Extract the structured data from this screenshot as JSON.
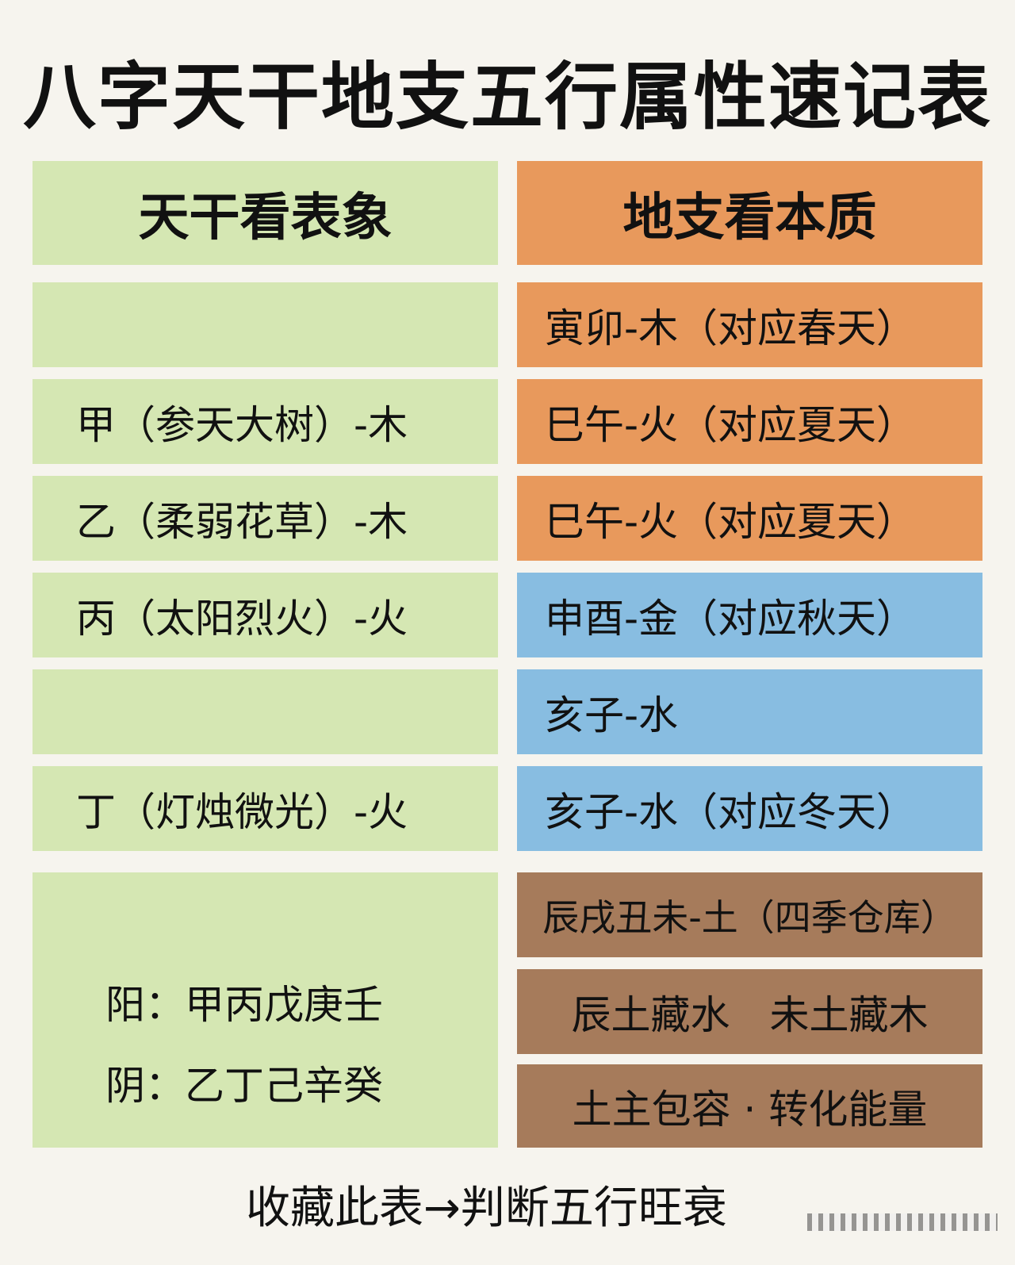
{
  "title": "八字天干地支五行属性速记表",
  "left": {
    "header": "天干看表象",
    "rows": [
      "",
      "甲（参天大树）-木",
      "乙（柔弱花草）-木",
      "丙（太阳烈火）-火",
      "",
      "丁（灯烛微光）-火"
    ],
    "yinyang": [
      "阳：甲丙戊庚壬",
      "阴：乙丁己辛癸"
    ]
  },
  "right": {
    "header": "地支看本质",
    "rows": [
      "寅卯-木（对应春天）",
      "巳午-火（对应夏天）",
      "巳午-火（对应夏天）",
      "申酉-金（对应秋天）",
      "亥子-水",
      "亥子-水（对应冬天）"
    ],
    "earth": [
      "辰戌丑未-土（四季仓库）",
      "辰土藏水　未土藏木",
      "土主包容 · 转化能量"
    ]
  },
  "footer": "收藏此表→判断五行旺衰",
  "colors": {
    "green": "#d5e7b3",
    "orange": "#e8995c",
    "blue": "#88bde1",
    "brown": "#a67b5b",
    "background": "#f6f4ee"
  }
}
